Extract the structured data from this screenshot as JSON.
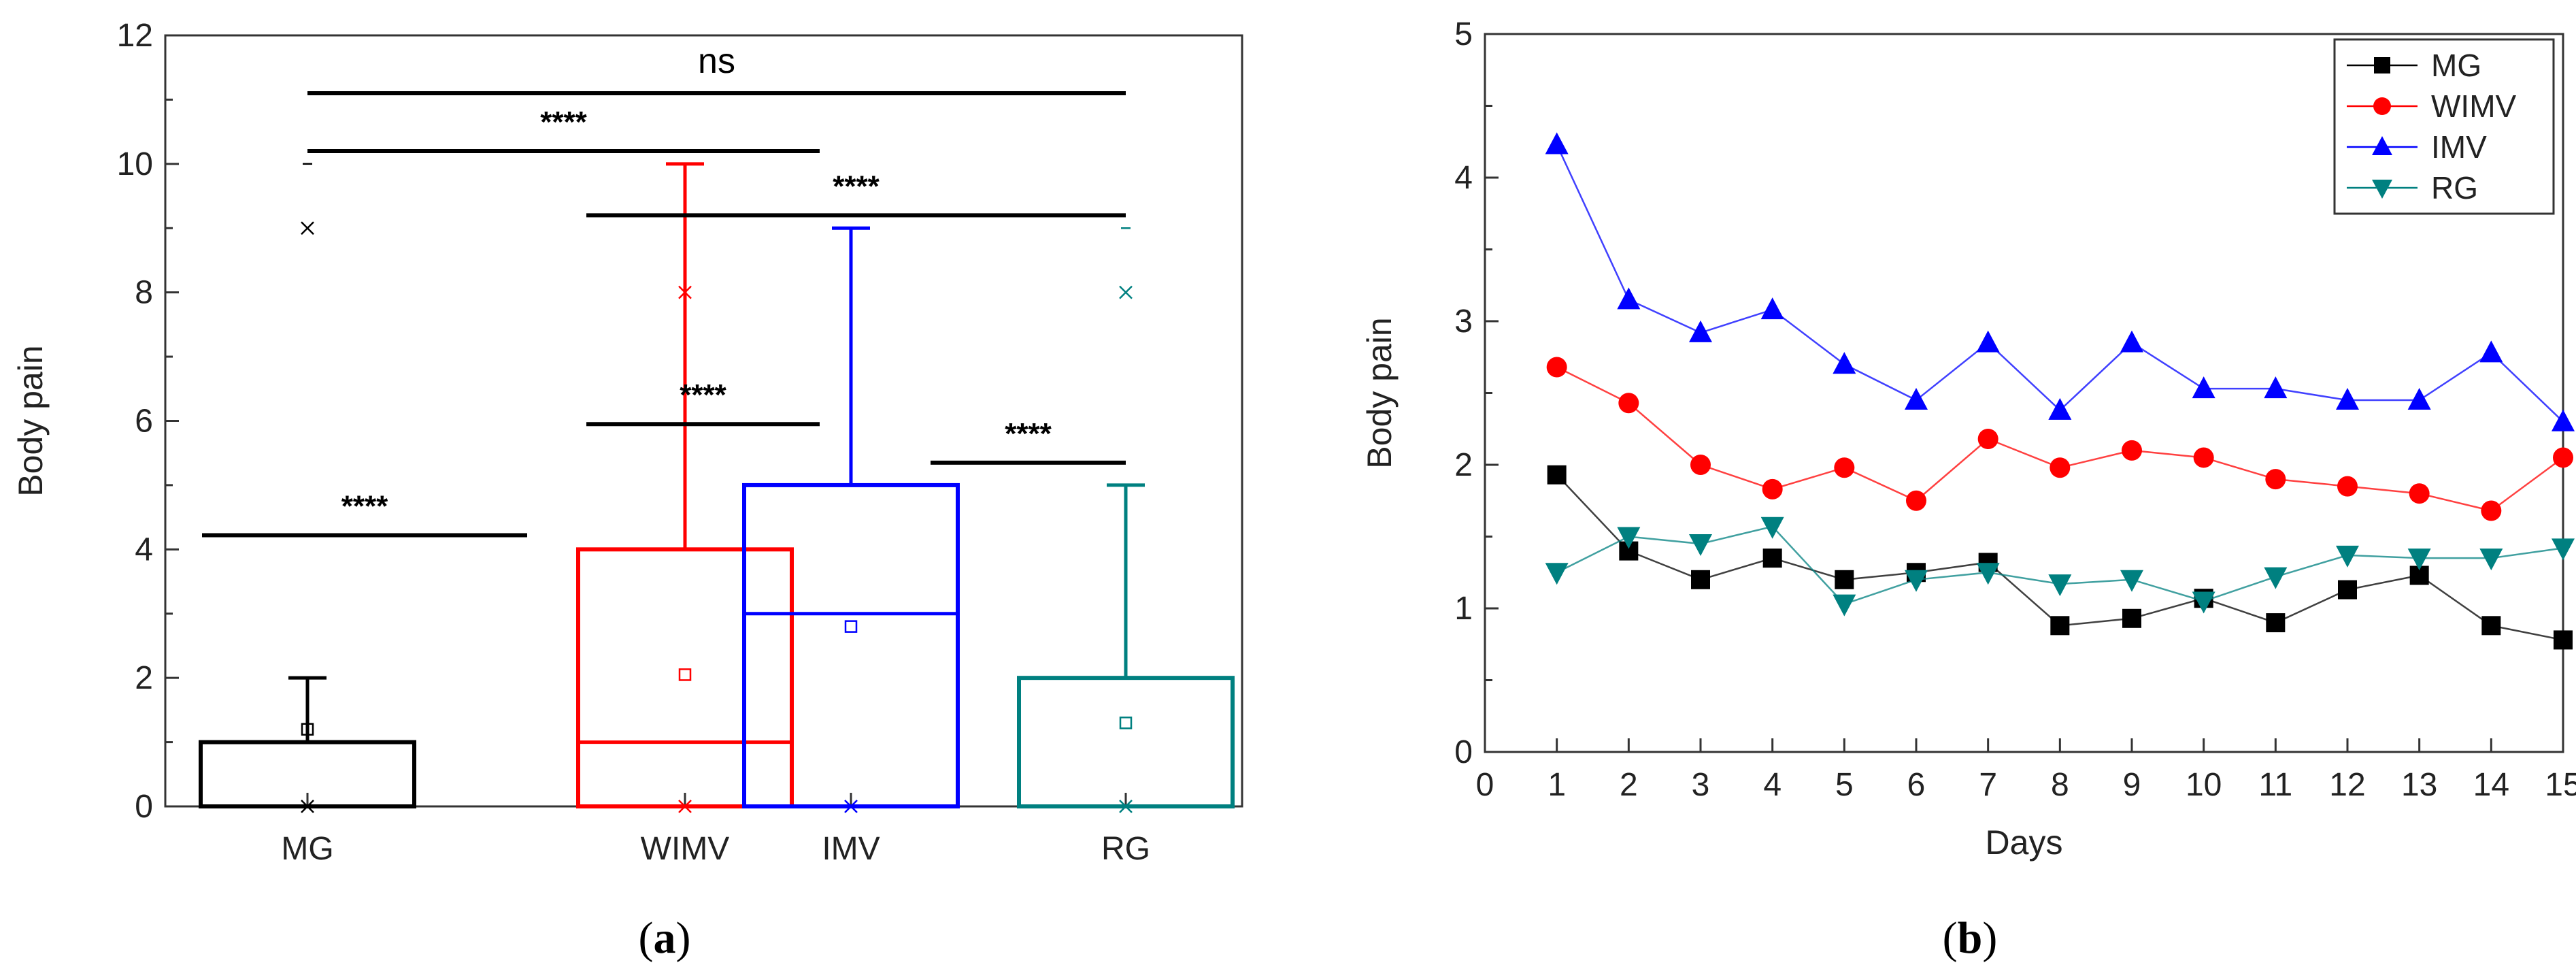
{
  "chart_data": [
    {
      "panel": "a",
      "type": "box",
      "ylabel": "Body pain",
      "xlabel": "",
      "ylim": [
        0,
        12
      ],
      "yticks": [
        0,
        2,
        4,
        6,
        8,
        10,
        12
      ],
      "categories": [
        "MG",
        "WIMV",
        "IMV",
        "RG"
      ],
      "colors": [
        "#000000",
        "#ff0000",
        "#0000ff",
        "#008080"
      ],
      "boxes": [
        {
          "category": "MG",
          "min": 0,
          "q1": 0,
          "median": 0,
          "q3": 1,
          "max": 2,
          "mean": 1.2,
          "outliers_x": [
            9,
            0
          ],
          "dash_marks": [
            10
          ]
        },
        {
          "category": "WIMV",
          "min": 0,
          "q1": 0,
          "median": 1,
          "q3": 4,
          "max": 10,
          "mean": 2.05,
          "outliers_x": [
            8,
            0
          ],
          "dash_marks": []
        },
        {
          "category": "IMV",
          "min": 0,
          "q1": 0,
          "median": 3,
          "q3": 5,
          "max": 9,
          "mean": 2.8,
          "outliers_x": [
            0
          ],
          "dash_marks": [
            9
          ]
        },
        {
          "category": "RG",
          "min": 0,
          "q1": 0,
          "median": 0,
          "q3": 2,
          "max": 5,
          "mean": 1.3,
          "outliers_x": [
            8,
            0
          ],
          "dash_marks": [
            9
          ]
        }
      ],
      "significance": [
        {
          "from": "MG",
          "to": "RG",
          "y": 11.1,
          "label": "ns"
        },
        {
          "from": "MG",
          "to": "IMV",
          "y": 10.2,
          "label": "****"
        },
        {
          "from": "WIMV",
          "to": "RG",
          "y": 9.2,
          "label": "****"
        },
        {
          "from": "WIMV",
          "to": "IMV",
          "y": 5.95,
          "label": "****"
        },
        {
          "from": "IMV",
          "to": "RG",
          "y": 5.35,
          "label": "****"
        },
        {
          "from": "MG",
          "to": "WIMV",
          "y": 4.22,
          "label": "****"
        }
      ],
      "panel_label": "a"
    },
    {
      "panel": "b",
      "type": "line",
      "xlabel": "Days",
      "ylabel": "Body pain",
      "xlim": [
        0,
        15
      ],
      "ylim": [
        0,
        5
      ],
      "xticks": [
        0,
        1,
        2,
        3,
        4,
        5,
        6,
        7,
        8,
        9,
        10,
        11,
        12,
        13,
        14,
        15
      ],
      "yticks": [
        0,
        1,
        2,
        3,
        4,
        5
      ],
      "x": [
        1,
        2,
        3,
        4,
        5,
        6,
        7,
        8,
        9,
        10,
        11,
        12,
        13,
        14,
        15
      ],
      "legend_position": "top-right",
      "series": [
        {
          "name": "MG",
          "color": "#000000",
          "marker": "square",
          "values": [
            1.93,
            1.4,
            1.2,
            1.35,
            1.2,
            1.25,
            1.32,
            0.88,
            0.93,
            1.07,
            0.9,
            1.13,
            1.23,
            0.88,
            0.78
          ]
        },
        {
          "name": "WIMV",
          "color": "#ff0000",
          "marker": "circle",
          "values": [
            2.68,
            2.43,
            2.0,
            1.83,
            1.98,
            1.75,
            2.18,
            1.98,
            2.1,
            2.05,
            1.9,
            1.85,
            1.8,
            1.68,
            2.05
          ]
        },
        {
          "name": "IMV",
          "color": "#0000ff",
          "marker": "triangle-up",
          "values": [
            4.23,
            3.15,
            2.92,
            3.08,
            2.7,
            2.45,
            2.85,
            2.38,
            2.85,
            2.53,
            2.53,
            2.45,
            2.45,
            2.78,
            2.3
          ]
        },
        {
          "name": "RG",
          "color": "#008080",
          "marker": "triangle-down",
          "values": [
            1.25,
            1.5,
            1.45,
            1.57,
            1.03,
            1.2,
            1.25,
            1.17,
            1.2,
            1.05,
            1.22,
            1.37,
            1.35,
            1.35,
            1.42
          ]
        }
      ],
      "panel_label": "b"
    }
  ]
}
